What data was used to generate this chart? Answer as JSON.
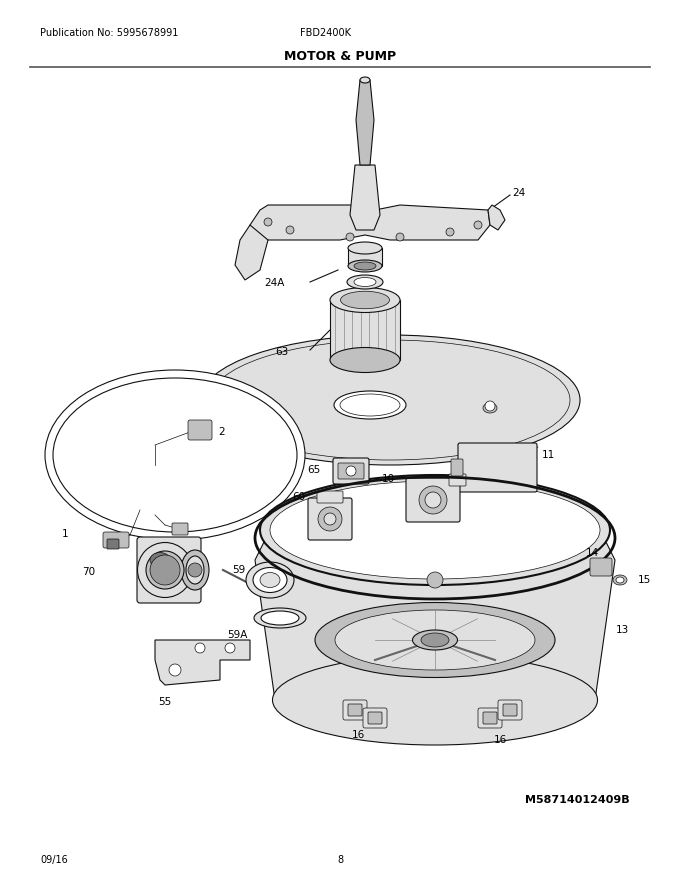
{
  "title": "MOTOR & PUMP",
  "pub_no": "Publication No: 5995678991",
  "model": "FBD2400K",
  "doc_code": "M58714012409B",
  "date": "09/16",
  "page": "8",
  "bg_color": "#ffffff",
  "text_color": "#000000",
  "figsize": [
    6.8,
    8.8
  ],
  "dpi": 100
}
